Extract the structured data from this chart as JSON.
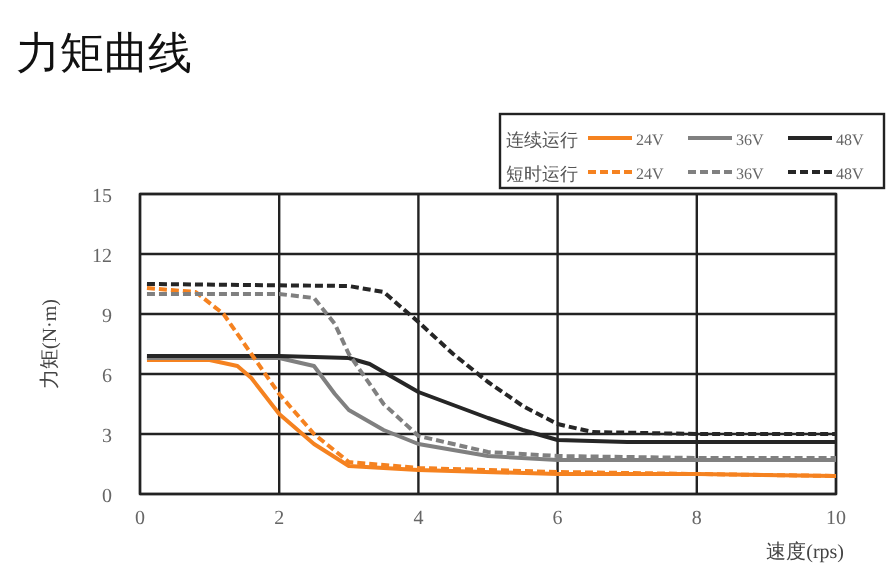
{
  "chart_data": {
    "type": "line",
    "title": "力矩曲线",
    "xlabel": "速度(rps)",
    "ylabel": "力矩(N·m)",
    "xlim": [
      0,
      10
    ],
    "xticks": [
      0,
      2,
      4,
      6,
      8,
      10
    ],
    "ylim": [
      0,
      15
    ],
    "yticks": [
      0,
      3,
      6,
      9,
      12,
      15
    ],
    "grid": true,
    "legend": "top right",
    "annotations": [
      "连续运行",
      "短时运行"
    ],
    "series": [
      {
        "name": "24V",
        "color": "#f58220",
        "line_style": "solid",
        "x": [
          0.1,
          1,
          1.4,
          1.6,
          2,
          2.5,
          3,
          4,
          6,
          8,
          10
        ],
        "values": [
          6.7,
          6.7,
          6.4,
          5.8,
          4.0,
          2.5,
          1.4,
          1.2,
          1.0,
          1.0,
          0.9
        ]
      },
      {
        "name": "36V",
        "color": "#808080",
        "line_style": "solid",
        "x": [
          0.1,
          2,
          2.5,
          2.8,
          3,
          3.5,
          4,
          5,
          6,
          8,
          10
        ],
        "values": [
          6.8,
          6.8,
          6.4,
          5.0,
          4.2,
          3.2,
          2.5,
          1.9,
          1.7,
          1.7,
          1.7
        ]
      },
      {
        "name": "48V",
        "color": "#262626",
        "line_style": "solid",
        "x": [
          0.1,
          2,
          3,
          3.3,
          4,
          5,
          5.5,
          6,
          7,
          10
        ],
        "values": [
          6.9,
          6.9,
          6.8,
          6.5,
          5.1,
          3.8,
          3.2,
          2.7,
          2.6,
          2.6
        ]
      },
      {
        "name": "24V",
        "color": "#f58220",
        "line_style": "dashed",
        "x": [
          0.1,
          0.8,
          1.2,
          1.6,
          2,
          2.5,
          3,
          4,
          6,
          8,
          10
        ],
        "values": [
          10.3,
          10.1,
          9.0,
          7.0,
          5.0,
          3.0,
          1.6,
          1.3,
          1.1,
          1.0,
          0.9
        ]
      },
      {
        "name": "36V",
        "color": "#808080",
        "line_style": "dashed",
        "x": [
          0.1,
          2,
          2.5,
          2.8,
          3,
          3.5,
          4,
          5,
          6,
          8,
          10
        ],
        "values": [
          10.0,
          10.0,
          9.8,
          8.5,
          7.0,
          4.5,
          2.9,
          2.1,
          1.9,
          1.8,
          1.8
        ]
      },
      {
        "name": "48V",
        "color": "#262626",
        "line_style": "dashed",
        "x": [
          0.1,
          3,
          3.5,
          4,
          4.5,
          5,
          5.5,
          6,
          6.5,
          8,
          10
        ],
        "values": [
          10.5,
          10.4,
          10.1,
          8.6,
          7.0,
          5.6,
          4.4,
          3.5,
          3.1,
          3.0,
          3.0
        ]
      }
    ]
  }
}
